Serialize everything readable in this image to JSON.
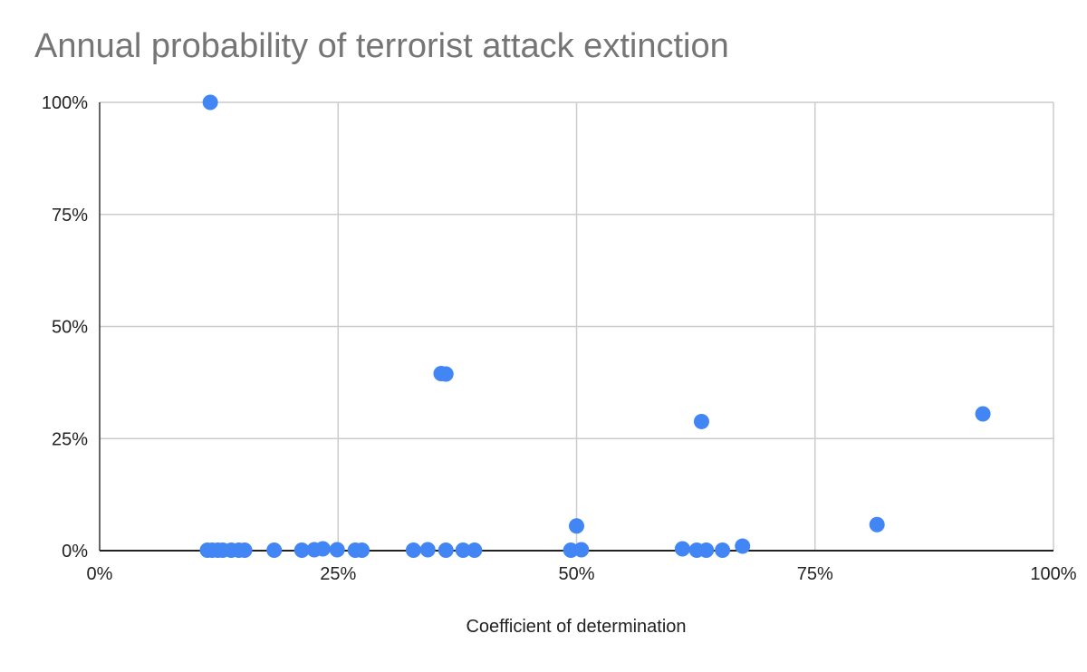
{
  "chart_data": {
    "type": "scatter",
    "title": "Annual probability of terrorist attack extinction",
    "xlabel": "Coefficient of determination",
    "ylabel": "",
    "xlim": [
      0,
      100
    ],
    "ylim": [
      0,
      100
    ],
    "x_ticks": [
      "0%",
      "25%",
      "50%",
      "75%",
      "100%"
    ],
    "y_ticks": [
      "0%",
      "25%",
      "50%",
      "75%",
      "100%"
    ],
    "grid": true,
    "point_color": "#4285f4",
    "series": [
      {
        "name": "Annual probability of terrorist attack extinction",
        "points": [
          {
            "x": 11.6,
            "y": 100
          },
          {
            "x": 11.3,
            "y": 0.1
          },
          {
            "x": 11.8,
            "y": 0.1
          },
          {
            "x": 12.4,
            "y": 0.1
          },
          {
            "x": 12.9,
            "y": 0.1
          },
          {
            "x": 13.8,
            "y": 0.1
          },
          {
            "x": 14.6,
            "y": 0.1
          },
          {
            "x": 15.2,
            "y": 0.1
          },
          {
            "x": 18.3,
            "y": 0.1
          },
          {
            "x": 21.2,
            "y": 0.1
          },
          {
            "x": 22.5,
            "y": 0.2
          },
          {
            "x": 23.4,
            "y": 0.4
          },
          {
            "x": 24.9,
            "y": 0.2
          },
          {
            "x": 26.8,
            "y": 0.1
          },
          {
            "x": 27.5,
            "y": 0.1
          },
          {
            "x": 32.9,
            "y": 0.1
          },
          {
            "x": 34.4,
            "y": 0.2
          },
          {
            "x": 35.8,
            "y": 39.5
          },
          {
            "x": 36.3,
            "y": 39.4
          },
          {
            "x": 36.3,
            "y": 0.1
          },
          {
            "x": 38.1,
            "y": 0.1
          },
          {
            "x": 39.3,
            "y": 0.1
          },
          {
            "x": 49.4,
            "y": 0.1
          },
          {
            "x": 50.5,
            "y": 0.2
          },
          {
            "x": 50.0,
            "y": 5.5
          },
          {
            "x": 61.1,
            "y": 0.4
          },
          {
            "x": 62.6,
            "y": 0.1
          },
          {
            "x": 63.6,
            "y": 0.1
          },
          {
            "x": 63.1,
            "y": 28.8
          },
          {
            "x": 65.3,
            "y": 0.1
          },
          {
            "x": 67.4,
            "y": 1.0
          },
          {
            "x": 81.5,
            "y": 5.8
          },
          {
            "x": 92.6,
            "y": 30.5
          }
        ]
      }
    ]
  }
}
